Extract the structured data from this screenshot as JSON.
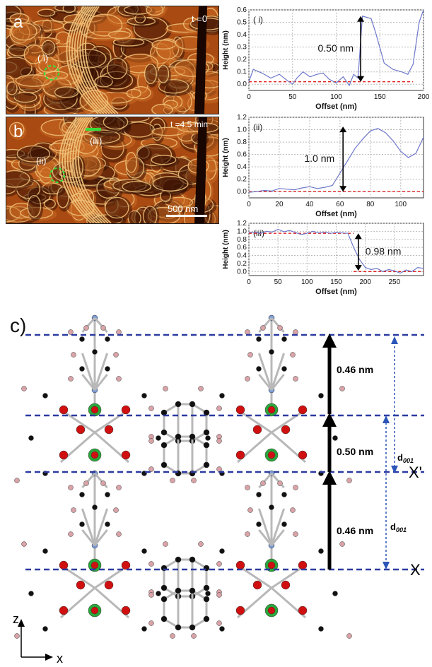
{
  "panel_a": {
    "letter": "a",
    "time": "t =0",
    "marker": "( i)"
  },
  "panel_b": {
    "letter": "b",
    "time": "t =4.5 min",
    "marker_ii": "(ii)",
    "marker_iii": "(iii)",
    "scalebar": "500 nm"
  },
  "panel_c": {
    "letter": "c)",
    "dims": [
      "0.46 nm",
      "0.50 nm",
      "0.46 nm"
    ],
    "d001_label": "d",
    "d001_sub": "001",
    "plane_labels": [
      "X'",
      "X"
    ],
    "axes": {
      "z": "z",
      "x": "x"
    }
  },
  "colors": {
    "atom_black": "#111111",
    "atom_pink": "#d9a3a8",
    "atom_red": "#d01010",
    "atom_green": "#2aa83a",
    "atom_blue": "#7a9bd6",
    "dash_blue": "#2b3aa0",
    "profile_blue": "#6e78c8",
    "ref_red": "#e02020",
    "afm_dark": "#3a1203",
    "afm_mid": "#a84a12",
    "afm_light": "#f0c27a"
  },
  "chart_data": [
    {
      "type": "line",
      "tag": "( i)",
      "xlabel": "Offset (nm)",
      "ylabel": "Height (nm)",
      "xlim": [
        0,
        200
      ],
      "ylim": [
        -0.05,
        0.6
      ],
      "xticks": [
        0,
        50,
        100,
        150,
        200
      ],
      "yticks": [
        0.0,
        0.1,
        0.2,
        0.3,
        0.4,
        0.5,
        0.6
      ],
      "grid": true,
      "x": [
        0,
        5,
        15,
        25,
        35,
        42,
        50,
        55,
        62,
        70,
        78,
        85,
        92,
        100,
        108,
        115,
        120,
        125,
        130,
        140,
        145,
        155,
        165,
        175,
        182,
        188,
        195,
        200
      ],
      "y": [
        0.02,
        0.12,
        0.09,
        0.05,
        0.08,
        0.04,
        0.0,
        0.05,
        0.1,
        0.06,
        0.08,
        0.09,
        0.04,
        0.01,
        0.06,
        -0.01,
        0.08,
        0.05,
        0.55,
        0.53,
        0.42,
        0.17,
        0.12,
        0.1,
        0.08,
        0.16,
        0.5,
        0.6
      ],
      "reference_y": 0.02,
      "annotation": "0.50 nm"
    },
    {
      "type": "line",
      "tag": "(ii)",
      "xlabel": "Offset (nm)",
      "ylabel": "Height (nm)",
      "xlim": [
        0,
        115
      ],
      "ylim": [
        -0.1,
        1.2
      ],
      "xticks": [
        0,
        20,
        40,
        60,
        80,
        100
      ],
      "yticks": [
        0.0,
        0.2,
        0.4,
        0.6,
        0.8,
        1.0,
        1.2
      ],
      "grid": true,
      "x": [
        0,
        5,
        10,
        15,
        20,
        25,
        30,
        35,
        40,
        45,
        50,
        55,
        60,
        65,
        70,
        75,
        80,
        85,
        90,
        95,
        100,
        105,
        110,
        115
      ],
      "y": [
        -0.01,
        0.0,
        0.02,
        0.01,
        0.05,
        0.04,
        0.03,
        0.06,
        0.08,
        0.05,
        0.07,
        0.1,
        0.3,
        0.5,
        0.7,
        0.85,
        0.98,
        1.02,
        0.95,
        0.82,
        0.65,
        0.55,
        0.62,
        0.88
      ],
      "reference_y": 0.0,
      "annotation": "1.0 nm"
    },
    {
      "type": "line",
      "tag": "(iii)",
      "xlabel": "Offset (nm)",
      "ylabel": "Height (nm)",
      "xlim": [
        0,
        300
      ],
      "ylim": [
        -0.1,
        1.2
      ],
      "xticks": [
        0,
        50,
        100,
        150,
        200,
        250
      ],
      "yticks": [
        0.0,
        0.2,
        0.4,
        0.6,
        0.8,
        1.0,
        1.2
      ],
      "grid": true,
      "x": [
        0,
        10,
        20,
        30,
        40,
        50,
        60,
        70,
        80,
        90,
        100,
        110,
        120,
        130,
        140,
        150,
        160,
        170,
        180,
        190,
        200,
        210,
        220,
        230,
        240,
        250,
        260,
        270,
        280,
        290,
        300
      ],
      "y": [
        0.97,
        0.98,
        0.95,
        1.0,
        0.98,
        1.05,
        0.99,
        1.02,
        0.97,
        0.92,
        0.95,
        1.0,
        0.96,
        0.98,
        0.95,
        0.97,
        0.96,
        0.95,
        0.6,
        0.3,
        0.1,
        0.05,
        0.08,
        0.0,
        0.05,
        0.02,
        -0.04,
        0.04,
        0.0,
        0.1,
        0.08
      ],
      "reference_levels": [
        0.95,
        0.0
      ],
      "annotation": "0.98 nm"
    }
  ]
}
